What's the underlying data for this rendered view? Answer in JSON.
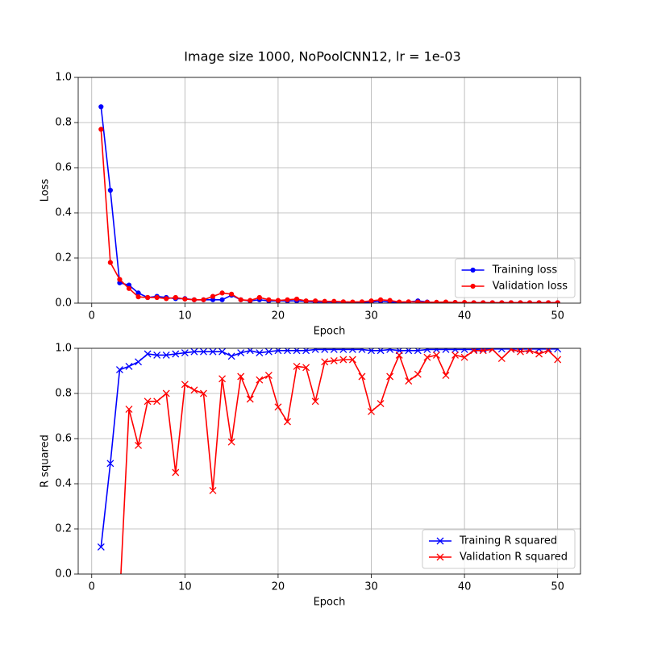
{
  "title": "Image size 1000, NoPoolCNN12, lr = 1e-03",
  "chart_data": [
    {
      "type": "line",
      "xlabel": "Epoch",
      "ylabel": "Loss",
      "x": [
        1,
        2,
        3,
        4,
        5,
        6,
        7,
        8,
        9,
        10,
        11,
        12,
        13,
        14,
        15,
        16,
        17,
        18,
        19,
        20,
        21,
        22,
        23,
        24,
        25,
        26,
        27,
        28,
        29,
        30,
        31,
        32,
        33,
        34,
        35,
        36,
        37,
        38,
        39,
        40,
        41,
        42,
        43,
        44,
        45,
        46,
        47,
        48,
        49,
        50
      ],
      "xlim": [
        -1.45,
        52.45
      ],
      "xticks": [
        0,
        10,
        20,
        30,
        40,
        50
      ],
      "ylim": [
        0,
        1
      ],
      "yticks": [
        {
          "value": 0,
          "label": "0.0"
        },
        {
          "value": 0.2,
          "label": "0.2"
        },
        {
          "value": 0.4,
          "label": "0.4"
        },
        {
          "value": 0.6,
          "label": "0.6"
        },
        {
          "value": 0.8,
          "label": "0.8"
        },
        {
          "value": 1,
          "label": "1.0"
        }
      ],
      "grid": true,
      "legend": "lower right",
      "series": [
        {
          "name": "Training loss",
          "color": "#0000ff",
          "marker": ".",
          "values": [
            0.87,
            0.5,
            0.09,
            0.08,
            0.045,
            0.025,
            0.03,
            0.025,
            0.02,
            0.02,
            0.015,
            0.015,
            0.015,
            0.015,
            0.035,
            0.015,
            0.01,
            0.015,
            0.01,
            0.01,
            0.01,
            0.01,
            0.008,
            0.005,
            0.005,
            0.005,
            0.005,
            0.003,
            0.003,
            0.005,
            0.008,
            0.005,
            0.003,
            0.005,
            0.01,
            0.005,
            0.003,
            0.003,
            0.003,
            0.002,
            0.002,
            0.002,
            0.002,
            0.002,
            0.002,
            0.002,
            0.002,
            0.002,
            0.002,
            0.002
          ]
        },
        {
          "name": "Validation loss",
          "color": "#ff0000",
          "marker": ".",
          "values": [
            0.77,
            0.18,
            0.105,
            0.065,
            0.028,
            0.025,
            0.025,
            0.02,
            0.025,
            0.018,
            0.015,
            0.015,
            0.03,
            0.045,
            0.04,
            0.015,
            0.012,
            0.025,
            0.015,
            0.012,
            0.015,
            0.018,
            0.01,
            0.01,
            0.008,
            0.008,
            0.006,
            0.005,
            0.006,
            0.01,
            0.015,
            0.012,
            0.005,
            0.006,
            0.005,
            0.004,
            0.004,
            0.005,
            0.003,
            0.003,
            0.002,
            0.002,
            0.002,
            0.002,
            0.002,
            0.002,
            0.002,
            0.002,
            0.002,
            0.002
          ]
        }
      ]
    },
    {
      "type": "line",
      "xlabel": "Epoch",
      "ylabel": "R squared",
      "x": [
        1,
        2,
        3,
        4,
        5,
        6,
        7,
        8,
        9,
        10,
        11,
        12,
        13,
        14,
        15,
        16,
        17,
        18,
        19,
        20,
        21,
        22,
        23,
        24,
        25,
        26,
        27,
        28,
        29,
        30,
        31,
        32,
        33,
        34,
        35,
        36,
        37,
        38,
        39,
        40,
        41,
        42,
        43,
        44,
        45,
        46,
        47,
        48,
        49,
        50
      ],
      "xlim": [
        -1.45,
        52.45
      ],
      "xticks": [
        0,
        10,
        20,
        30,
        40,
        50
      ],
      "ylim": [
        0,
        1
      ],
      "yticks": [
        {
          "value": 0,
          "label": "0.0"
        },
        {
          "value": 0.2,
          "label": "0.2"
        },
        {
          "value": 0.4,
          "label": "0.4"
        },
        {
          "value": 0.6,
          "label": "0.6"
        },
        {
          "value": 0.8,
          "label": "0.8"
        },
        {
          "value": 1,
          "label": "1.0"
        }
      ],
      "grid": true,
      "legend": "lower right",
      "series": [
        {
          "name": "Training R squared",
          "color": "#0000ff",
          "marker": "x",
          "values": [
            0.12,
            0.49,
            0.905,
            0.92,
            0.94,
            0.975,
            0.97,
            0.97,
            0.975,
            0.98,
            0.985,
            0.985,
            0.985,
            0.985,
            0.965,
            0.98,
            0.99,
            0.98,
            0.985,
            0.99,
            0.99,
            0.99,
            0.99,
            0.995,
            0.995,
            0.995,
            0.995,
            0.995,
            0.995,
            0.99,
            0.99,
            0.995,
            0.99,
            0.99,
            0.99,
            0.995,
            0.995,
            0.995,
            0.995,
            0.995,
            0.995,
            0.997,
            0.997,
            0.997,
            0.997,
            0.997,
            0.997,
            0.997,
            0.997,
            0.997
          ]
        },
        {
          "name": "Validation R squared",
          "color": "#ff0000",
          "marker": "x",
          "values": [
            null,
            null,
            -0.11,
            0.73,
            0.57,
            0.765,
            0.765,
            0.8,
            0.45,
            0.84,
            0.815,
            0.8,
            0.37,
            0.865,
            0.585,
            0.875,
            0.775,
            0.86,
            0.88,
            0.74,
            0.675,
            0.92,
            0.915,
            0.765,
            0.94,
            0.945,
            0.95,
            0.95,
            0.875,
            0.72,
            0.755,
            0.875,
            0.97,
            0.855,
            0.885,
            0.96,
            0.97,
            0.88,
            0.97,
            0.96,
            0.99,
            0.99,
            0.995,
            0.955,
            0.995,
            0.985,
            0.99,
            0.975,
            0.99,
            0.95
          ]
        }
      ]
    }
  ]
}
